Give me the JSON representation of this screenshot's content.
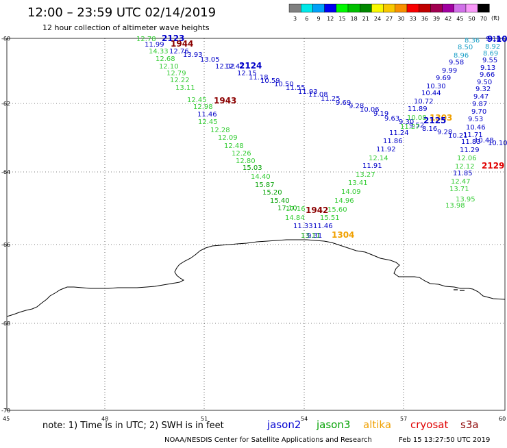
{
  "header": {
    "title": "12:00 – 23:59 UTC 02/14/2019",
    "subtitle": "12 hour collection of altimeter wave heights"
  },
  "legend": {
    "unit": "(ft)",
    "bins": [
      {
        "label": "3",
        "color": "#808080"
      },
      {
        "label": "6",
        "color": "#00e8e8"
      },
      {
        "label": "9",
        "color": "#00a0f8"
      },
      {
        "label": "12",
        "color": "#0000f0"
      },
      {
        "label": "15",
        "color": "#00f800"
      },
      {
        "label": "18",
        "color": "#00c000"
      },
      {
        "label": "21",
        "color": "#008800"
      },
      {
        "label": "24",
        "color": "#f8f800"
      },
      {
        "label": "27",
        "color": "#f8c800"
      },
      {
        "label": "30",
        "color": "#f89000"
      },
      {
        "label": "33",
        "color": "#f80000"
      },
      {
        "label": "36",
        "color": "#c00000"
      },
      {
        "label": "39",
        "color": "#a00050"
      },
      {
        "label": "42",
        "color": "#a000a0"
      },
      {
        "label": "45",
        "color": "#d070e8"
      },
      {
        "label": "50",
        "color": "#f898f8"
      },
      {
        "label": "70",
        "color": "#000000"
      }
    ]
  },
  "axes": {
    "lat_ticks": [
      "-60",
      "-62",
      "-64",
      "-66",
      "-68",
      "-70"
    ],
    "lon_ticks": [
      "45",
      "48",
      "51",
      "54",
      "57",
      "60"
    ]
  },
  "tracks": {
    "pass_ids": [
      {
        "id": "2123",
        "color": "#0000c8"
      },
      {
        "id": "1944",
        "color": "#8b0000"
      },
      {
        "id": "2124",
        "color": "#0000c8"
      },
      {
        "id": "1943",
        "color": "#8b0000"
      },
      {
        "id": "1942",
        "color": "#8b0000"
      },
      {
        "id": "1304",
        "color": "#f0a000"
      },
      {
        "id": "1303",
        "color": "#f0a000"
      },
      {
        "id": "2125",
        "color": "#0000c8"
      },
      {
        "id": "2129",
        "color": "#e00000"
      },
      {
        "id": "9.10",
        "color": "#0000c8"
      }
    ],
    "jason3_sw": [
      "12.78",
      "11.99",
      "14.33",
      "12.68",
      "12.10",
      "12.79",
      "12.22",
      "13.11",
      "12.45",
      "12.98",
      "11.46",
      "12.45",
      "12.28",
      "12.09",
      "12.48",
      "12.26",
      "12.80",
      "15.03",
      "14.40",
      "15.87",
      "15.20",
      "15.40",
      "17.10",
      "17.16",
      "14.84",
      "11.33",
      "11.46",
      "13.11",
      "9.31"
    ],
    "jason3_ne": [
      "15.51",
      "15.60",
      "14.96",
      "14.09",
      "13.41",
      "13.27",
      "12.14"
    ],
    "jason2_mid": [
      "11.92",
      "11.91",
      "11.86",
      "11.24",
      "11.89",
      "10.72",
      "10.44",
      "10.30",
      "9.69",
      "9.99",
      "9.58",
      "8.96",
      "8.50",
      "8.36"
    ],
    "track_2124": [
      "12.76",
      "13.93",
      "13.05",
      "12.02",
      "12.42",
      "12.15",
      "11.18",
      "10.59",
      "10.50",
      "11.55",
      "11.93",
      "11.08",
      "11.25",
      "9.69",
      "9.28",
      "10.06",
      "9.19",
      "9.63",
      "9.30",
      "9.52",
      "8.16",
      "9.28",
      "10.21",
      "10.48",
      "10.10"
    ],
    "track_right": [
      "9.10",
      "8.92",
      "8.69",
      "9.55",
      "9.13",
      "9.66",
      "9.50",
      "9.32",
      "9.47",
      "9.87",
      "9.70",
      "9.53",
      "10.46",
      "11.71",
      "11.83",
      "11.29",
      "12.06",
      "12.12",
      "11.85",
      "12.47",
      "13.71",
      "13.95",
      "13.98"
    ],
    "green_right": [
      "10.08",
      "11.27"
    ]
  },
  "footer": {
    "note": "note:  1) Time is in UTC; 2) SWH is in feet",
    "satellites": [
      {
        "name": "jason2",
        "color": "#0000d0"
      },
      {
        "name": "jason3",
        "color": "#00a000"
      },
      {
        "name": "altika",
        "color": "#f0a000"
      },
      {
        "name": "cryosat",
        "color": "#e00000"
      },
      {
        "name": "s3a",
        "color": "#8b0000"
      }
    ],
    "credit": "NOAA/NESDIS Center for Satellite Applications and Research",
    "timestamp": "Feb 15 13:27:50 UTC 2019"
  }
}
